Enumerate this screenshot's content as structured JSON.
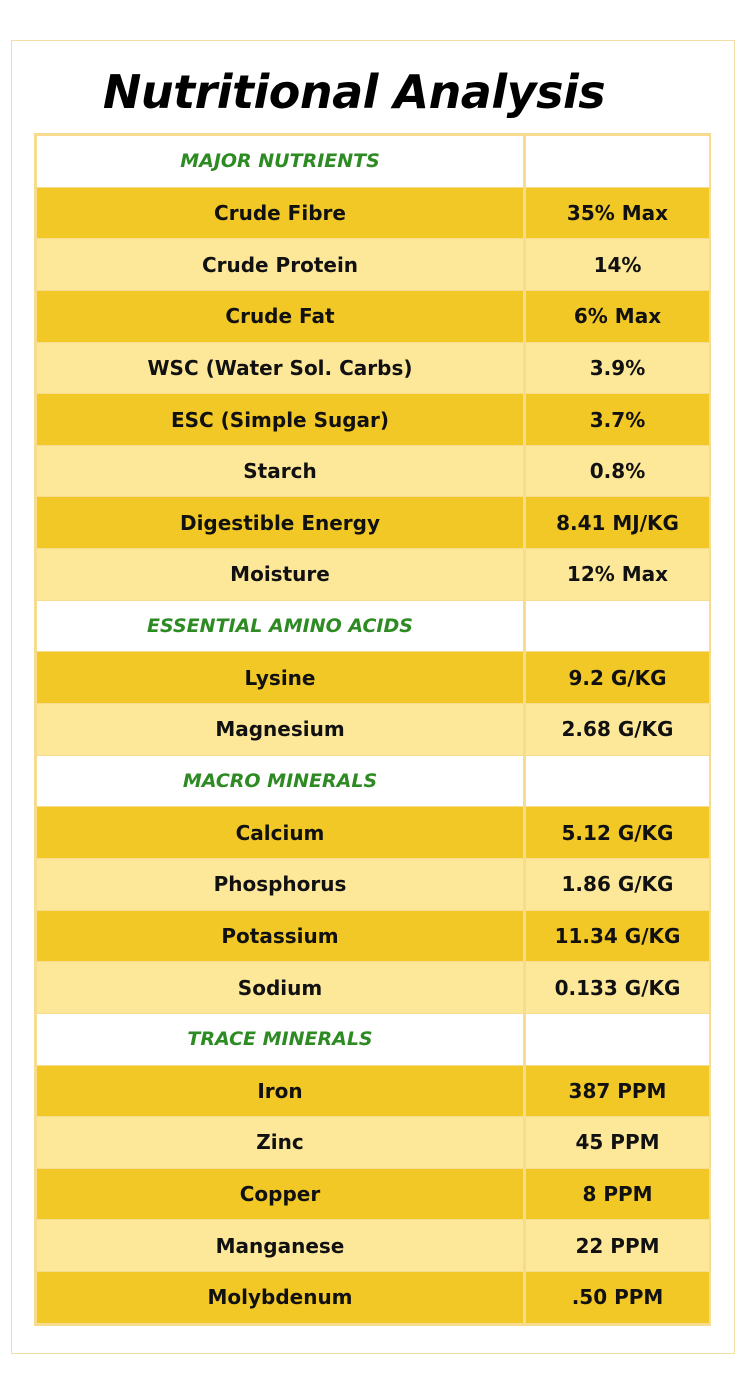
{
  "title": "Nutritional Analysis",
  "colors": {
    "dark_row": "#f2c826",
    "light_row": "#fde89a",
    "section_text": "#2e8b24",
    "border": "#f7dc8f"
  },
  "sections": [
    {
      "heading": "MAJOR NUTRIENTS",
      "rows": [
        {
          "name": "Crude Fibre",
          "value": "35% Max"
        },
        {
          "name": "Crude Protein",
          "value": "14%"
        },
        {
          "name": "Crude Fat",
          "value": "6% Max"
        },
        {
          "name": "WSC (Water Sol. Carbs)",
          "value": "3.9%"
        },
        {
          "name": "ESC (Simple Sugar)",
          "value": "3.7%"
        },
        {
          "name": "Starch",
          "value": "0.8%"
        },
        {
          "name": "Digestible Energy",
          "value": "8.41 MJ/KG"
        },
        {
          "name": "Moisture",
          "value": "12% Max"
        }
      ]
    },
    {
      "heading": "ESSENTIAL AMINO ACIDS",
      "rows": [
        {
          "name": "Lysine",
          "value": "9.2 G/KG"
        },
        {
          "name": "Magnesium",
          "value": "2.68 G/KG"
        }
      ]
    },
    {
      "heading": "MACRO MINERALS",
      "rows": [
        {
          "name": "Calcium",
          "value": "5.12 G/KG"
        },
        {
          "name": "Phosphorus",
          "value": "1.86 G/KG"
        },
        {
          "name": "Potassium",
          "value": "11.34 G/KG"
        },
        {
          "name": "Sodium",
          "value": "0.133 G/KG"
        }
      ]
    },
    {
      "heading": "TRACE MINERALS",
      "rows": [
        {
          "name": "Iron",
          "value": "387 PPM"
        },
        {
          "name": "Zinc",
          "value": "45 PPM"
        },
        {
          "name": "Copper",
          "value": "8 PPM"
        },
        {
          "name": "Manganese",
          "value": "22 PPM"
        },
        {
          "name": "Molybdenum",
          "value": ".50 PPM"
        }
      ]
    }
  ]
}
